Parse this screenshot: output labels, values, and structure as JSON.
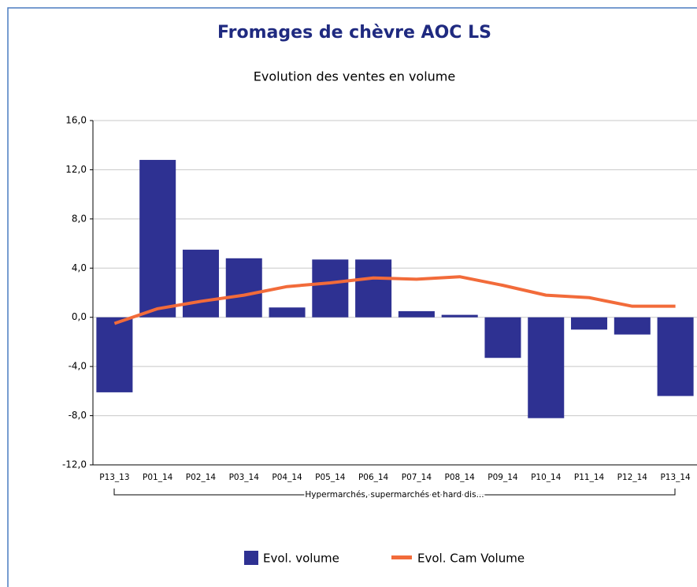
{
  "chart_data": {
    "type": "bar",
    "title": "Fromages de chèvre AOC LS",
    "subtitle": "Evolution des ventes en volume",
    "group_label": "Hypermarchés, supermarchés et hard dis...",
    "categories": [
      "P13_13",
      "P01_14",
      "P02_14",
      "P03_14",
      "P04_14",
      "P05_14",
      "P06_14",
      "P07_14",
      "P08_14",
      "P09_14",
      "P10_14",
      "P11_14",
      "P12_14",
      "P13_14"
    ],
    "series": [
      {
        "name": "Evol. volume",
        "type": "bar",
        "color": "#2e3192",
        "values": [
          -6.1,
          12.8,
          5.5,
          4.8,
          0.8,
          4.7,
          4.7,
          0.5,
          0.2,
          -3.3,
          -8.2,
          -1.0,
          -1.4,
          -6.4
        ]
      },
      {
        "name": "Evol. Cam Volume",
        "type": "line",
        "color": "#f26b3a",
        "values": [
          -0.5,
          0.7,
          1.3,
          1.8,
          2.5,
          2.8,
          3.2,
          3.1,
          3.3,
          2.6,
          1.8,
          1.6,
          0.9,
          0.9
        ]
      }
    ],
    "ylim": [
      -12,
      16
    ],
    "yticks": [
      {
        "value": -12,
        "label": "-12,0"
      },
      {
        "value": -8,
        "label": "-8,0"
      },
      {
        "value": -4,
        "label": "-4,0"
      },
      {
        "value": 0,
        "label": "0,0"
      },
      {
        "value": 4,
        "label": "4,0"
      },
      {
        "value": 8,
        "label": "8,0"
      },
      {
        "value": 12,
        "label": "12,0"
      },
      {
        "value": 16,
        "label": "16,0"
      }
    ],
    "grid": true
  }
}
